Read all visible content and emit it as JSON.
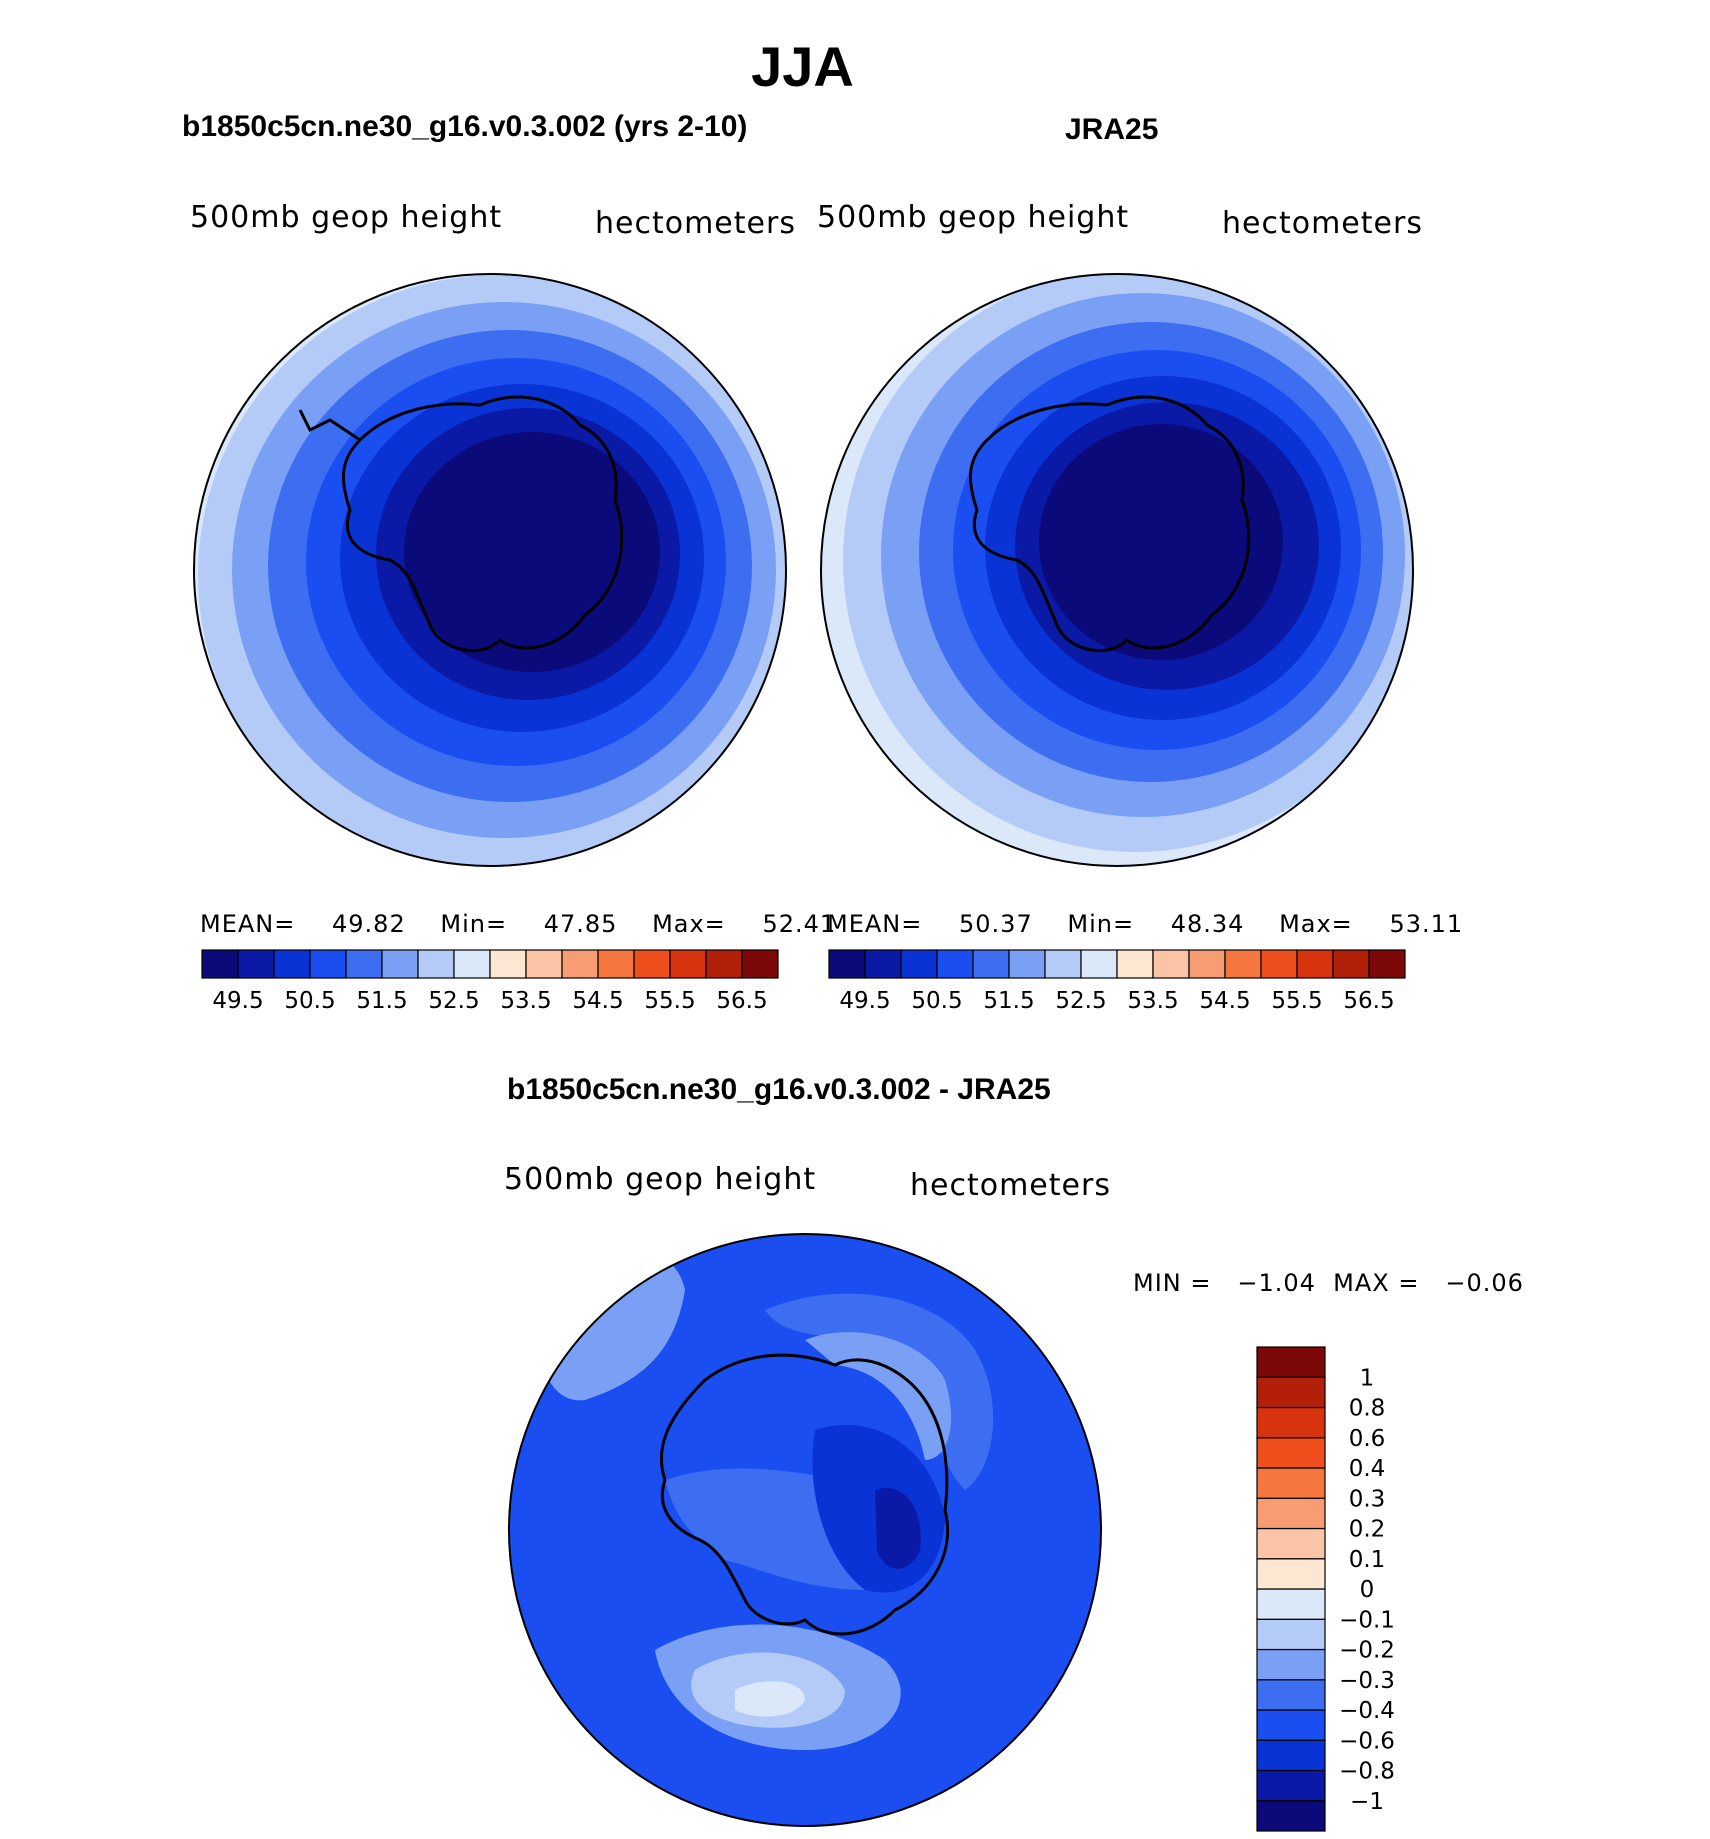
{
  "title": "JJA",
  "panels": [
    {
      "title": "b1850c5cn.ne30_g16.v0.3.002 (yrs 2-10)",
      "left_label": "500mb geop height",
      "right_label": "hectometers",
      "stats": {
        "mean_label": "MEAN=",
        "mean": "49.82",
        "min_label": "Min=",
        "min": "47.85",
        "max_label": "Max=",
        "max": "52.41"
      }
    },
    {
      "title": "JRA25",
      "left_label": "500mb geop height",
      "right_label": "hectometers",
      "stats": {
        "mean_label": "MEAN=",
        "mean": "50.37",
        "min_label": "Min=",
        "min": "48.34",
        "max_label": "Max=",
        "max": "53.11"
      }
    },
    {
      "title": "b1850c5cn.ne30_g16.v0.3.002 - JRA25",
      "left_label": "500mb geop height",
      "right_label": "hectometers",
      "stats_text": "MIN =   −1.04  MAX =   −0.06"
    }
  ],
  "colorbar_top": {
    "colors": [
      "#0a0a7a",
      "#0b1aa6",
      "#0a33d6",
      "#1a4ef0",
      "#3d6ef2",
      "#7aa0f5",
      "#b4cbf8",
      "#dbe8fa",
      "#fde7d3",
      "#fbc4a6",
      "#f89c74",
      "#f5763e",
      "#ee4f1c",
      "#d8330f",
      "#b3200a",
      "#7c0808"
    ],
    "labels": [
      "49.5",
      "50.5",
      "51.5",
      "52.5",
      "53.5",
      "54.5",
      "55.5",
      "56.5"
    ]
  },
  "colorbar_diff": {
    "colors": [
      "#0a0a7a",
      "#0b1aa6",
      "#0a33d6",
      "#1a4ef0",
      "#3d6ef2",
      "#7aa0f5",
      "#b4cbf8",
      "#dbe8fa",
      "#fde7d3",
      "#fbc4a6",
      "#f89c74",
      "#f5763e",
      "#ee4f1c",
      "#d8330f",
      "#b3200a",
      "#7c0808"
    ],
    "labels": [
      "−1",
      "−0.8",
      "−0.6",
      "−0.4",
      "−0.3",
      "−0.2",
      "−0.1",
      "0",
      "0.1",
      "0.2",
      "0.3",
      "0.4",
      "0.6",
      "0.8",
      "1"
    ]
  },
  "chart_data": [
    {
      "type": "heatmap",
      "title": "b1850c5cn.ne30_g16.v0.3.002 (yrs 2-10)",
      "subtitle_left": "500mb geop height",
      "subtitle_right": "hectometers",
      "projection": "south polar stereographic",
      "mean": 49.82,
      "min": 47.85,
      "max": 52.41,
      "levels": [
        49.5,
        50,
        50.5,
        51,
        51.5,
        52,
        52.5,
        53,
        53.5,
        54,
        54.5,
        55,
        55.5,
        56,
        56.5
      ]
    },
    {
      "type": "heatmap",
      "title": "JRA25",
      "subtitle_left": "500mb geop height",
      "subtitle_right": "hectometers",
      "projection": "south polar stereographic",
      "mean": 50.37,
      "min": 48.34,
      "max": 53.11,
      "levels": [
        49.5,
        50,
        50.5,
        51,
        51.5,
        52,
        52.5,
        53,
        53.5,
        54,
        54.5,
        55,
        55.5,
        56,
        56.5
      ]
    },
    {
      "type": "heatmap",
      "title": "b1850c5cn.ne30_g16.v0.3.002 - JRA25",
      "subtitle_left": "500mb geop height",
      "subtitle_right": "hectometers",
      "projection": "south polar stereographic",
      "min": -1.04,
      "max": -0.06,
      "levels": [
        -1,
        -0.8,
        -0.6,
        -0.4,
        -0.3,
        -0.2,
        -0.1,
        0,
        0.1,
        0.2,
        0.3,
        0.4,
        0.6,
        0.8,
        1
      ]
    }
  ]
}
